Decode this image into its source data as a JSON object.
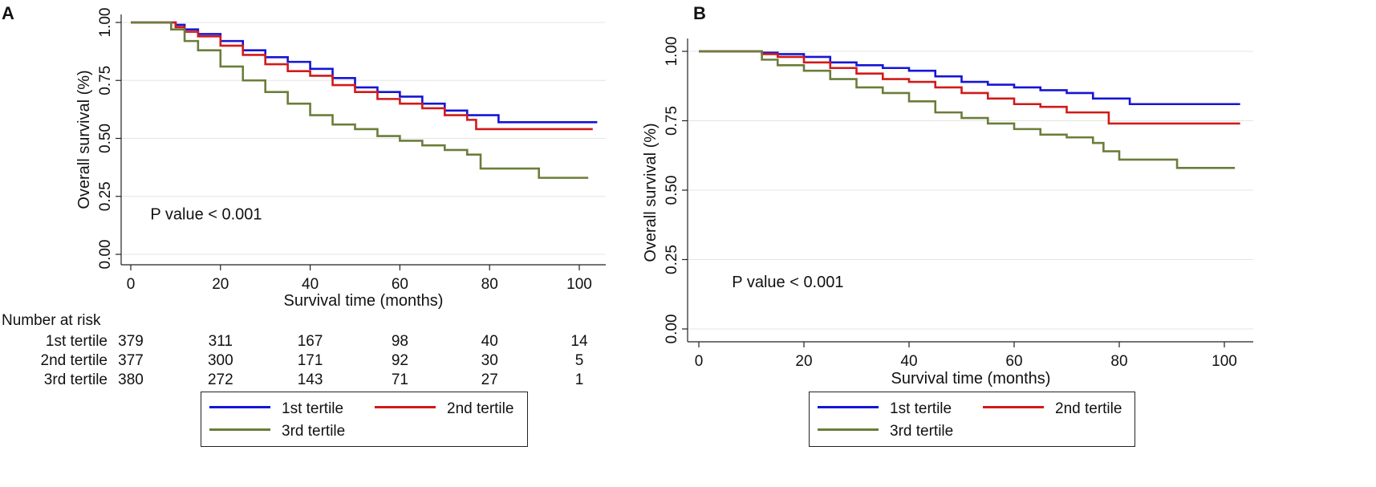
{
  "colors": {
    "tertile1": "#1515d6",
    "tertile2": "#d11a1a",
    "tertile3": "#6b7d3a",
    "grid": "#e4e4e4",
    "axis": "#222222"
  },
  "chart_data": [
    {
      "panel_label": "A",
      "type": "line",
      "title": "",
      "xlabel": "Survival time (months)",
      "ylabel": "Overall survival (%)",
      "xlim": [
        0,
        104
      ],
      "ylim": [
        0,
        1
      ],
      "xticks": [
        0,
        20,
        40,
        60,
        80,
        100
      ],
      "xtick_labels": [
        "0",
        "20",
        "40",
        "60",
        "80",
        "100"
      ],
      "yticks": [
        0,
        0.25,
        0.5,
        0.75,
        1.0
      ],
      "ytick_labels": [
        "0.00",
        "0.25",
        "0.50",
        "0.75",
        "1.00"
      ],
      "grid": "horizontal",
      "annotation": "P value < 0.001",
      "annotation_at": [
        4,
        0.15
      ],
      "series": [
        {
          "name": "1st tertile",
          "color": "#1515d6",
          "x": [
            0,
            8,
            10,
            12,
            15,
            20,
            25,
            30,
            35,
            40,
            45,
            50,
            55,
            60,
            65,
            70,
            75,
            82,
            104
          ],
          "y": [
            1,
            1,
            0.99,
            0.97,
            0.95,
            0.92,
            0.88,
            0.85,
            0.83,
            0.8,
            0.76,
            0.72,
            0.7,
            0.68,
            0.65,
            0.62,
            0.6,
            0.57,
            0.57
          ]
        },
        {
          "name": "2nd tertile",
          "color": "#d11a1a",
          "x": [
            0,
            8,
            10,
            12,
            15,
            20,
            25,
            30,
            35,
            40,
            45,
            50,
            55,
            60,
            65,
            70,
            75,
            77,
            103
          ],
          "y": [
            1,
            1,
            0.98,
            0.96,
            0.94,
            0.9,
            0.86,
            0.82,
            0.79,
            0.77,
            0.73,
            0.7,
            0.67,
            0.65,
            0.63,
            0.6,
            0.58,
            0.54,
            0.54
          ]
        },
        {
          "name": "3rd tertile",
          "color": "#6b7d3a",
          "x": [
            0,
            8,
            9,
            12,
            15,
            20,
            25,
            30,
            35,
            40,
            45,
            50,
            55,
            60,
            65,
            70,
            75,
            78,
            88,
            91,
            102
          ],
          "y": [
            1,
            1,
            0.97,
            0.92,
            0.88,
            0.81,
            0.75,
            0.7,
            0.65,
            0.6,
            0.56,
            0.54,
            0.51,
            0.49,
            0.47,
            0.45,
            0.43,
            0.37,
            0.37,
            0.33,
            0.33
          ]
        }
      ],
      "risk_table": {
        "title": "Number at risk",
        "times": [
          0,
          20,
          40,
          60,
          80,
          100
        ],
        "rows": [
          {
            "label": "1st tertile",
            "values": [
              "379",
              "311",
              "167",
              "98",
              "40",
              "14"
            ]
          },
          {
            "label": "2nd tertile",
            "values": [
              "377",
              "300",
              "171",
              "92",
              "30",
              "5"
            ]
          },
          {
            "label": "3rd tertile",
            "values": [
              "380",
              "272",
              "143",
              "71",
              "27",
              "1"
            ]
          }
        ]
      },
      "legend": [
        "1st tertile",
        "2nd tertile",
        "3rd tertile"
      ],
      "legend_position": "bottom"
    },
    {
      "panel_label": "B",
      "type": "line",
      "title": "",
      "xlabel": "Survival time (months)",
      "ylabel": "Overall survival (%)",
      "xlim": [
        0,
        104
      ],
      "ylim": [
        0,
        1
      ],
      "xticks": [
        0,
        20,
        40,
        60,
        80,
        100
      ],
      "xtick_labels": [
        "0",
        "20",
        "40",
        "60",
        "80",
        "100"
      ],
      "yticks": [
        0,
        0.25,
        0.5,
        0.75,
        1.0
      ],
      "ytick_labels": [
        "0.00",
        "0.25",
        "0.50",
        "0.75",
        "1.00"
      ],
      "grid": "horizontal",
      "annotation": "P value < 0.001",
      "annotation_at": [
        6,
        0.15
      ],
      "series": [
        {
          "name": "1st tertile",
          "color": "#1515d6",
          "x": [
            0,
            9,
            12,
            15,
            20,
            25,
            30,
            35,
            40,
            45,
            50,
            55,
            60,
            65,
            70,
            75,
            82,
            103
          ],
          "y": [
            1,
            1,
            0.995,
            0.99,
            0.98,
            0.96,
            0.95,
            0.94,
            0.93,
            0.91,
            0.89,
            0.88,
            0.87,
            0.86,
            0.85,
            0.83,
            0.81,
            0.81
          ]
        },
        {
          "name": "2nd tertile",
          "color": "#d11a1a",
          "x": [
            0,
            9,
            12,
            15,
            20,
            25,
            30,
            35,
            40,
            45,
            50,
            55,
            60,
            65,
            70,
            78,
            103
          ],
          "y": [
            1,
            1,
            0.99,
            0.98,
            0.96,
            0.94,
            0.92,
            0.9,
            0.89,
            0.87,
            0.85,
            0.83,
            0.81,
            0.8,
            0.78,
            0.74,
            0.74
          ]
        },
        {
          "name": "3rd tertile",
          "color": "#6b7d3a",
          "x": [
            0,
            9,
            12,
            15,
            20,
            25,
            30,
            35,
            40,
            45,
            50,
            55,
            60,
            65,
            70,
            75,
            77,
            80,
            91,
            102
          ],
          "y": [
            1,
            1,
            0.97,
            0.95,
            0.93,
            0.9,
            0.87,
            0.85,
            0.82,
            0.78,
            0.76,
            0.74,
            0.72,
            0.7,
            0.69,
            0.67,
            0.64,
            0.61,
            0.58,
            0.58
          ]
        }
      ],
      "legend": [
        "1st tertile",
        "2nd tertile",
        "3rd tertile"
      ],
      "legend_position": "bottom"
    }
  ]
}
